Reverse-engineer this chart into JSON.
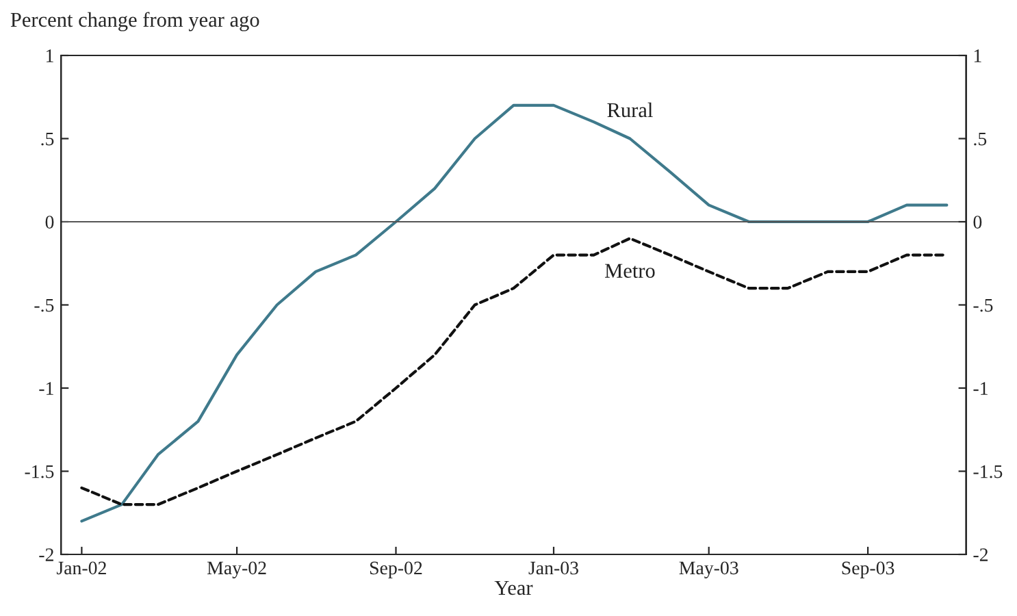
{
  "chart_data": {
    "type": "line",
    "ylabel": "Percent change from year ago",
    "xlabel": "Year",
    "x": [
      "2002-01",
      "2002-02",
      "2002-03",
      "2002-04",
      "2002-05",
      "2002-06",
      "2002-07",
      "2002-08",
      "2002-09",
      "2002-10",
      "2002-11",
      "2002-12",
      "2003-01",
      "2003-02",
      "2003-03",
      "2003-04",
      "2003-05",
      "2003-06",
      "2003-07",
      "2003-08",
      "2003-09",
      "2003-10",
      "2003-11"
    ],
    "series": [
      {
        "name": "Rural",
        "color": "#3f7a8c",
        "line_style": "solid",
        "values": [
          -1.8,
          -1.7,
          -1.4,
          -1.2,
          -0.8,
          -0.5,
          -0.3,
          -0.2,
          0,
          0.2,
          0.5,
          0.7,
          0.7,
          0.6,
          0.5,
          0.3,
          0.1,
          0,
          0,
          0,
          0,
          0.1,
          0.1
        ]
      },
      {
        "name": "Metro",
        "color": "#111111",
        "line_style": "dashed",
        "values": [
          -1.6,
          -1.7,
          -1.7,
          -1.6,
          -1.5,
          -1.4,
          -1.3,
          -1.2,
          -1.0,
          -0.8,
          -0.5,
          -0.4,
          -0.2,
          -0.2,
          -0.1,
          -0.2,
          -0.3,
          -0.4,
          -0.4,
          -0.3,
          -0.3,
          -0.2,
          -0.2
        ]
      }
    ],
    "xlim": [
      "2001-12-16",
      "2003-11-16"
    ],
    "xticks": [
      {
        "value": "2002-01",
        "label": "Jan-02"
      },
      {
        "value": "2002-05",
        "label": "May-02"
      },
      {
        "value": "2002-09",
        "label": "Sep-02"
      },
      {
        "value": "2003-01",
        "label": "Jan-03"
      },
      {
        "value": "2003-05",
        "label": "May-03"
      },
      {
        "value": "2003-09",
        "label": "Sep-03"
      }
    ],
    "ylim": [
      -2,
      1
    ],
    "yticks": [
      {
        "value": -2,
        "label": "-2"
      },
      {
        "value": -1.5,
        "label": "-1.5"
      },
      {
        "value": -1,
        "label": "-1"
      },
      {
        "value": -0.5,
        "label": "-.5"
      },
      {
        "value": 0,
        "label": "0"
      },
      {
        "value": 0.5,
        "label": ".5"
      },
      {
        "value": 1,
        "label": "1"
      }
    ],
    "y2lim": [
      -2,
      1
    ],
    "y2ticks": [
      {
        "value": -2,
        "label": "-2"
      },
      {
        "value": -1.5,
        "label": "-1.5"
      },
      {
        "value": -1,
        "label": "-1"
      },
      {
        "value": -0.5,
        "label": "-.5"
      },
      {
        "value": 0,
        "label": "0"
      },
      {
        "value": 0.5,
        "label": ".5"
      },
      {
        "value": 1,
        "label": "1"
      }
    ],
    "ref_lines": [
      {
        "axis": "y",
        "value": 0,
        "color": "#555555",
        "line_style": "solid"
      }
    ],
    "grid": false,
    "legend": false,
    "marker": "none"
  }
}
